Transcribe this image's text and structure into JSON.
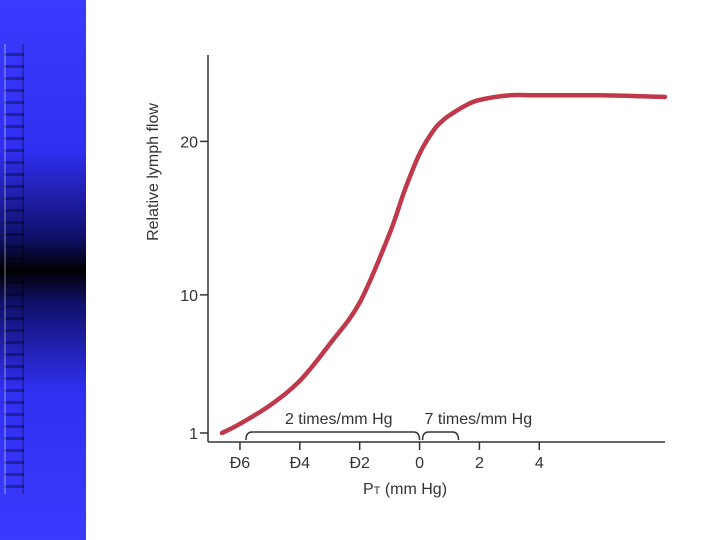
{
  "colors": {
    "sidebar_blue": "#3b3bff",
    "curve": "#c0394b",
    "axis": "#333333"
  },
  "chart_data": {
    "type": "line",
    "title": "",
    "xlabel": "PT (mm Hg)",
    "xlabel_main": "P",
    "xlabel_sub": "T",
    "xlabel_rest": " (mm Hg)",
    "ylabel": "Relative lymph flow",
    "x_tick_labels": [
      "Ð6",
      "Ð4",
      "Ð2",
      "0",
      "2",
      "4"
    ],
    "x_tick_values": [
      -6,
      -4,
      -2,
      0,
      2,
      4
    ],
    "y_tick_labels": [
      "1",
      "10",
      "20"
    ],
    "y_tick_values": [
      1,
      10,
      20
    ],
    "xlim": [
      -6.6,
      8.2
    ],
    "ylim": [
      1,
      24
    ],
    "grid": false,
    "series": [
      {
        "values_x": [
          -6.6,
          -6.0,
          -5.0,
          -4.0,
          -3.0,
          -2.0,
          -1.0,
          -0.5,
          0.0,
          0.5,
          0.8,
          1.0,
          1.5,
          2.0,
          3.0,
          4.0,
          6.0,
          8.2
        ],
        "values_y": [
          1.0,
          1.6,
          2.8,
          4.4,
          6.8,
          9.5,
          14.0,
          16.8,
          19.2,
          20.8,
          21.4,
          21.7,
          22.3,
          22.7,
          23.0,
          23.0,
          23.0,
          22.9
        ]
      }
    ],
    "annotations": [
      {
        "text": "2 times/mm Hg",
        "x_from": -5.8,
        "x_to": 0.0
      },
      {
        "text": "7 times/mm Hg",
        "x_from": 0.1,
        "x_to": 1.3
      }
    ]
  }
}
